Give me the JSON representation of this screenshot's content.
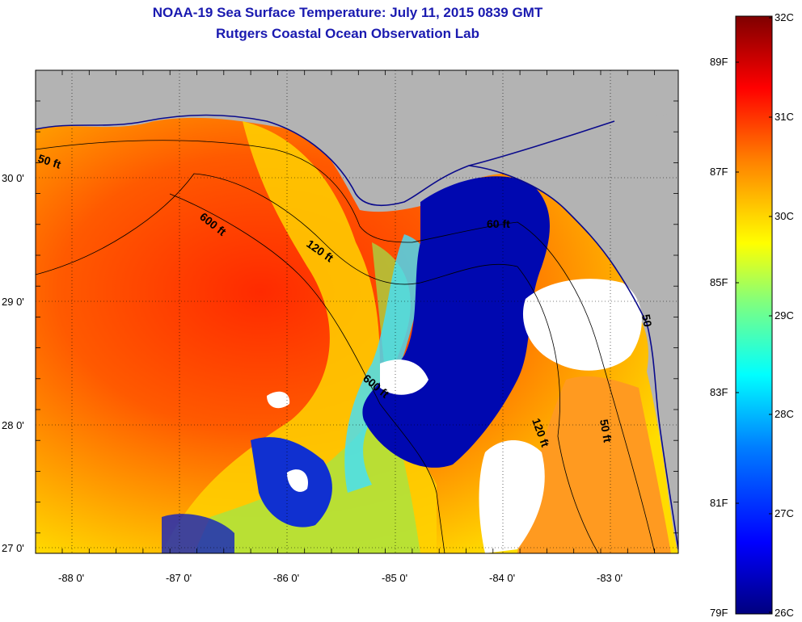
{
  "header": {
    "title": "NOAA-19 Sea Surface Temperature:  July 11, 2015 0839 GMT",
    "subtitle": "Rutgers Coastal Ocean Observation Lab"
  },
  "map": {
    "lon_ticks": [
      "-88 0'",
      "-87 0'",
      "-86 0'",
      "-85 0'",
      "-84 0'",
      "-83 0'"
    ],
    "lat_ticks": [
      "30 0'",
      "29 0'",
      "28 0'",
      "27 0'"
    ],
    "contour_labels": [
      "50 ft",
      "600 ft",
      "120 ft",
      "60 ft",
      "600 ft",
      "120 ft",
      "50 ft",
      "50"
    ],
    "colors": {
      "land": "#b3b3b3",
      "no_data": "#ffffff",
      "coastline": "#0a0a8c",
      "frame": "#000000"
    },
    "region": {
      "lon_range": [
        -88.33,
        -82.47
      ],
      "lat_range": [
        26.95,
        30.85
      ]
    },
    "grid": true
  },
  "colorbar": {
    "celsius_labels": [
      "32C",
      "31C",
      "30C",
      "29C",
      "28C",
      "27C",
      "26C"
    ],
    "fahrenheit_labels": [
      "89F",
      "87F",
      "85F",
      "83F",
      "81F",
      "79F"
    ],
    "range_c": [
      26,
      32
    ],
    "stops": [
      "#00007f",
      "#0000ff",
      "#007fff",
      "#00ffff",
      "#7fff7f",
      "#ffff00",
      "#ff7f00",
      "#ff0000",
      "#7f0000"
    ]
  }
}
